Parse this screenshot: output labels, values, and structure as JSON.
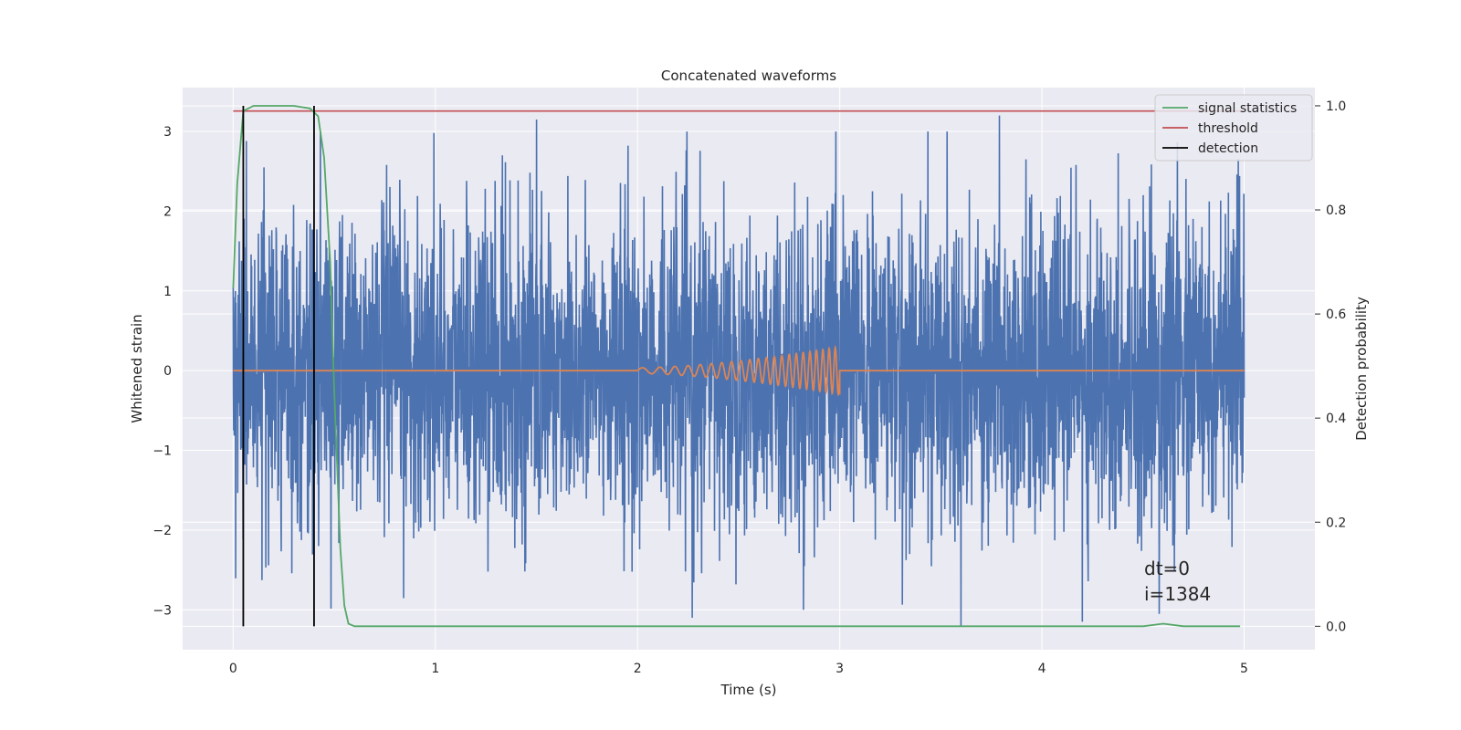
{
  "chart_data": {
    "type": "line",
    "title": "Concatenated waveforms",
    "xlabel": "Time (s)",
    "ylabel": "Whitened strain",
    "ylabel_right": "Detection probability",
    "xlim": [
      -0.25,
      5.35
    ],
    "ylim": [
      -3.5,
      3.55
    ],
    "ylim_right": [
      -0.045,
      1.035
    ],
    "x_ticks": [
      0,
      1,
      2,
      3,
      4,
      5
    ],
    "y_ticks": [
      -3,
      -2,
      -1,
      0,
      1,
      2,
      3
    ],
    "y_ticks_right": [
      0.0,
      0.2,
      0.4,
      0.6,
      0.8,
      1.0
    ],
    "y_tick_labels": [
      "−3",
      "−2",
      "−1",
      "0",
      "1",
      "2",
      "3"
    ],
    "y_tick_labels_right": [
      "0.0",
      "0.2",
      "0.4",
      "0.6",
      "0.8",
      "1.0"
    ],
    "grid": true,
    "legend_position": "top-right",
    "series": [
      {
        "name": "",
        "axis": "left",
        "color": "#4c72b0",
        "description": "whitened noisy strain, spanning 0 to 5 s, mostly within -2 to 2 with spikes up to about 3.2",
        "x_range": [
          0,
          5
        ],
        "samples": 4000,
        "typical_amplitude": 1.0,
        "peak_values": [
          {
            "x": 1.5,
            "y": 3.15
          },
          {
            "x": 3.79,
            "y": 3.2
          },
          {
            "x": 2.27,
            "y": -3.1
          },
          {
            "x": 3.6,
            "y": -3.2
          },
          {
            "x": 4.2,
            "y": -3.15
          },
          {
            "x": 4.58,
            "y": -3.05
          }
        ]
      },
      {
        "name": "",
        "axis": "left",
        "color": "#dd8452",
        "description": "injected chirp waveform from 2.0 s to 3.0 s, amplitude growing to about 0.3; zero elsewhere",
        "chirp_start": 2.0,
        "chirp_end": 3.0,
        "max_amplitude": 0.3
      },
      {
        "name": "signal statistics",
        "axis": "right",
        "color": "#55a868",
        "x": [
          0.0,
          0.02,
          0.05,
          0.1,
          0.3,
          0.38,
          0.42,
          0.45,
          0.48,
          0.5,
          0.53,
          0.55,
          0.57,
          0.6,
          1.0,
          2.0,
          3.0,
          4.0,
          4.5,
          4.6,
          4.7,
          4.98
        ],
        "y": [
          0.65,
          0.85,
          0.99,
          1.0,
          1.0,
          0.995,
          0.98,
          0.9,
          0.7,
          0.45,
          0.15,
          0.04,
          0.005,
          0.0,
          0.0,
          0.0,
          0.0,
          0.0,
          0.0,
          0.005,
          0.0,
          0.0
        ]
      },
      {
        "name": "threshold",
        "axis": "right",
        "color": "#c44e52",
        "x": [
          0,
          5
        ],
        "y": [
          0.99,
          0.99
        ]
      },
      {
        "name": "detection",
        "axis": "right",
        "color": "#000000",
        "x": [
          0.05,
          0.4
        ],
        "y_range": [
          0.0,
          1.0
        ]
      }
    ],
    "annotations": [
      "dt=0",
      "i=1384"
    ],
    "annotation_position": {
      "x": 4.5,
      "y": 0.1
    }
  }
}
